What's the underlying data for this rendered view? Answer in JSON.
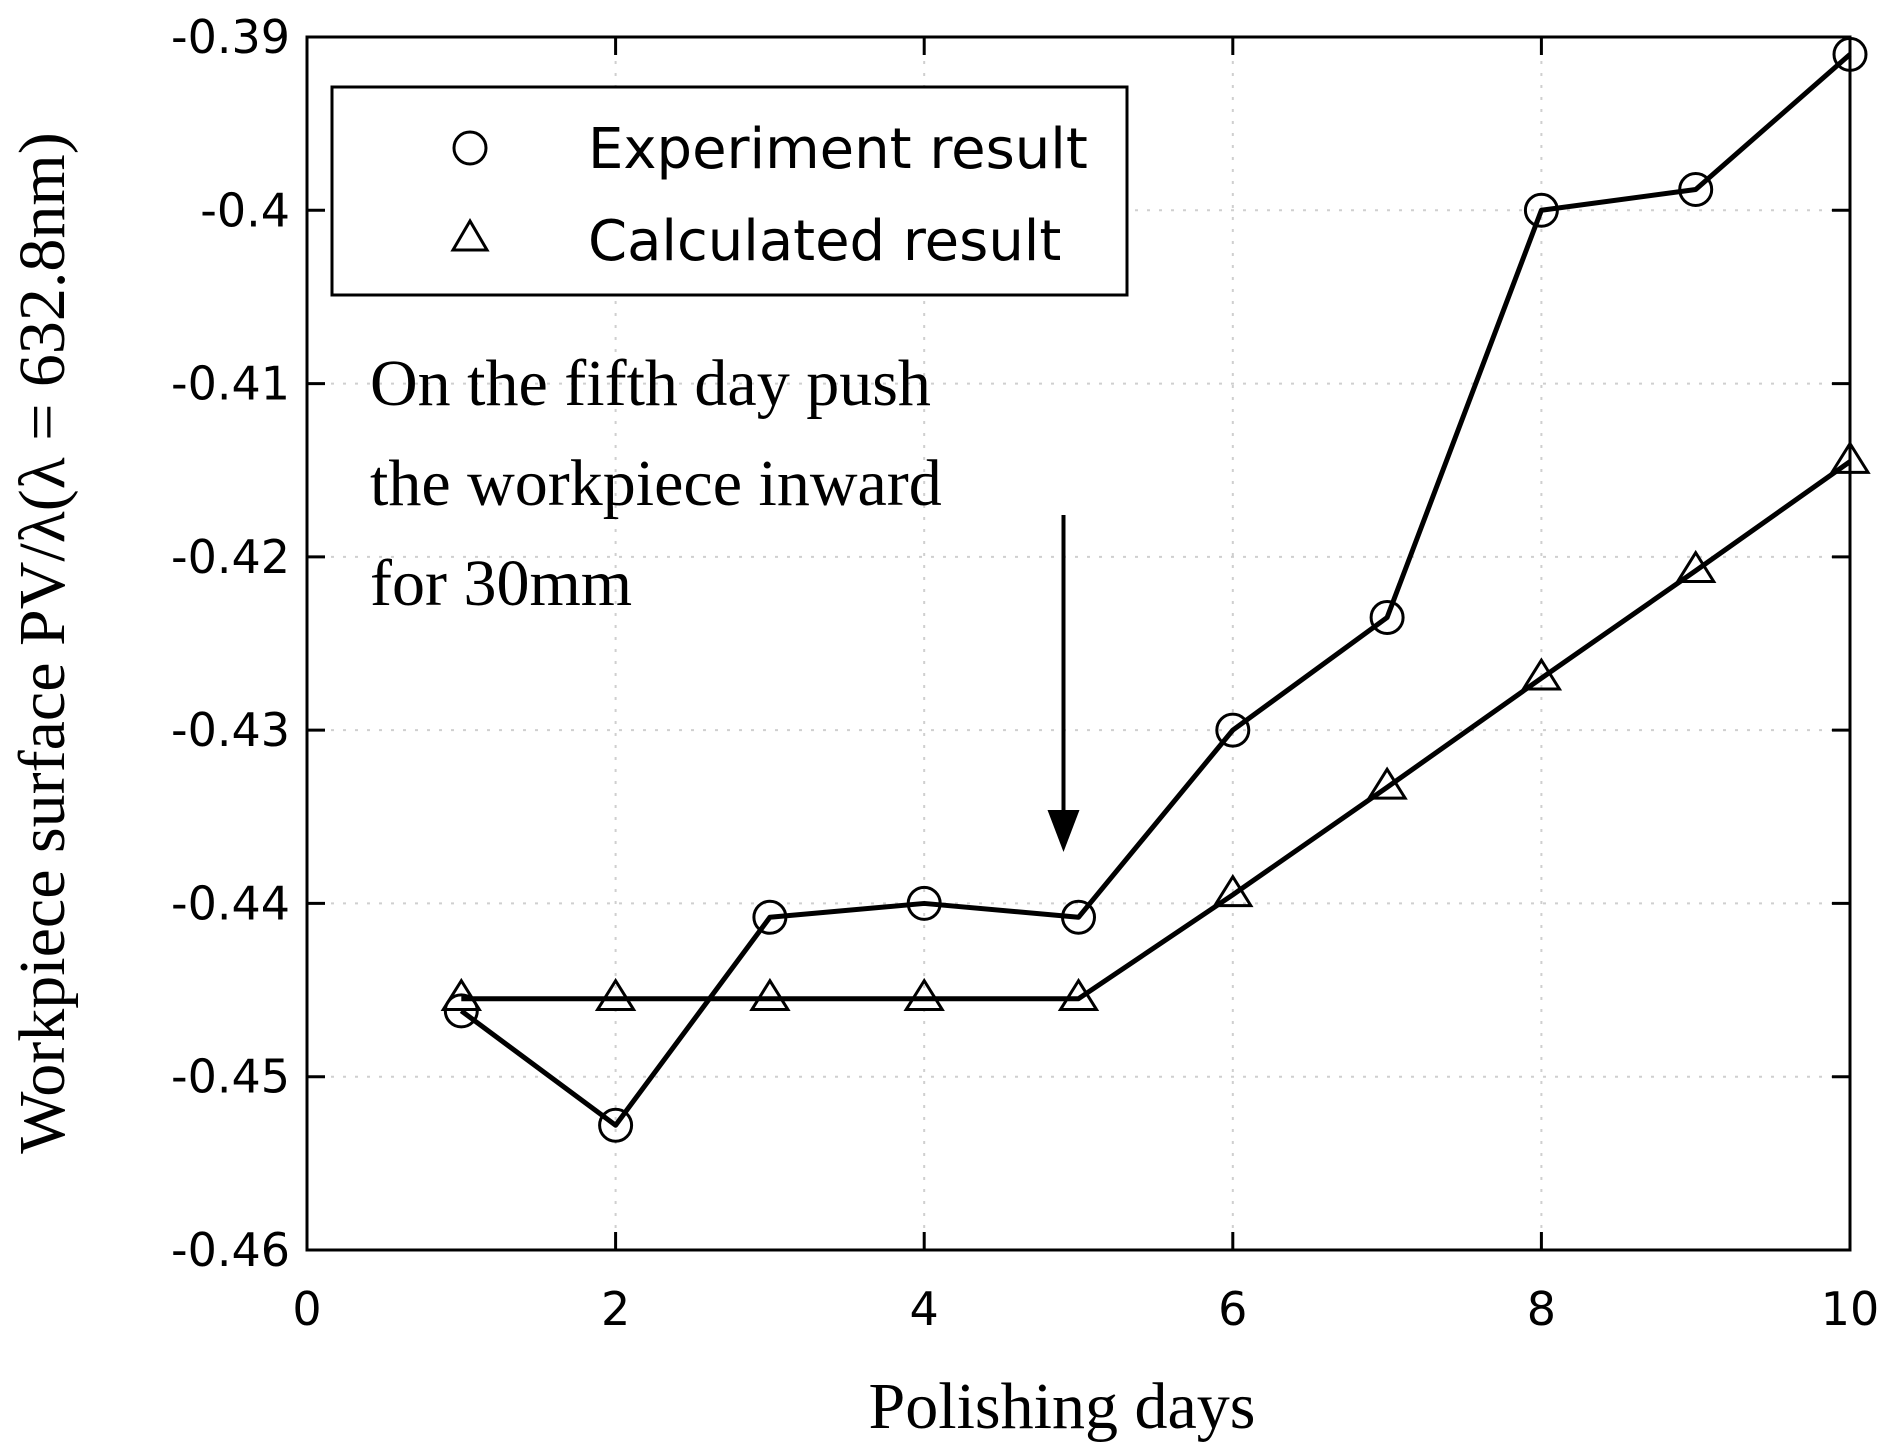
{
  "chart_data": {
    "type": "line",
    "xlabel": "Polishing days",
    "ylabel": "Workpiece surface PV/λ(λ = 632.8nm)",
    "xlim": [
      0,
      10
    ],
    "ylim": [
      -0.46,
      -0.39
    ],
    "x_ticks": [
      "0",
      "2",
      "4",
      "6",
      "8",
      "10"
    ],
    "y_ticks": [
      "-0.39",
      "-0.4",
      "-0.41",
      "-0.42",
      "-0.43",
      "-0.44",
      "-0.45",
      "-0.46"
    ],
    "grid": true,
    "legend_position": "top-left",
    "series": [
      {
        "name": "Experiment result",
        "marker": "circle",
        "x": [
          1,
          2,
          3,
          4,
          5,
          6,
          7,
          8,
          9,
          10
        ],
        "y": [
          -0.4462,
          -0.4528,
          -0.4408,
          -0.44,
          -0.4408,
          -0.43,
          -0.4235,
          -0.4,
          -0.3988,
          -0.391
        ]
      },
      {
        "name": "Calculated result",
        "marker": "triangle",
        "x": [
          1,
          2,
          3,
          4,
          5,
          6,
          7,
          8,
          9,
          10
        ],
        "y": [
          -0.4455,
          -0.4455,
          -0.4455,
          -0.4455,
          -0.4455,
          -0.4395,
          -0.4333,
          -0.427,
          -0.4208,
          -0.4145
        ]
      }
    ],
    "annotation": {
      "lines": [
        "On the fifth day push",
        "the workpiece inward",
        "for 30mm"
      ],
      "points_to_x": 5
    }
  }
}
